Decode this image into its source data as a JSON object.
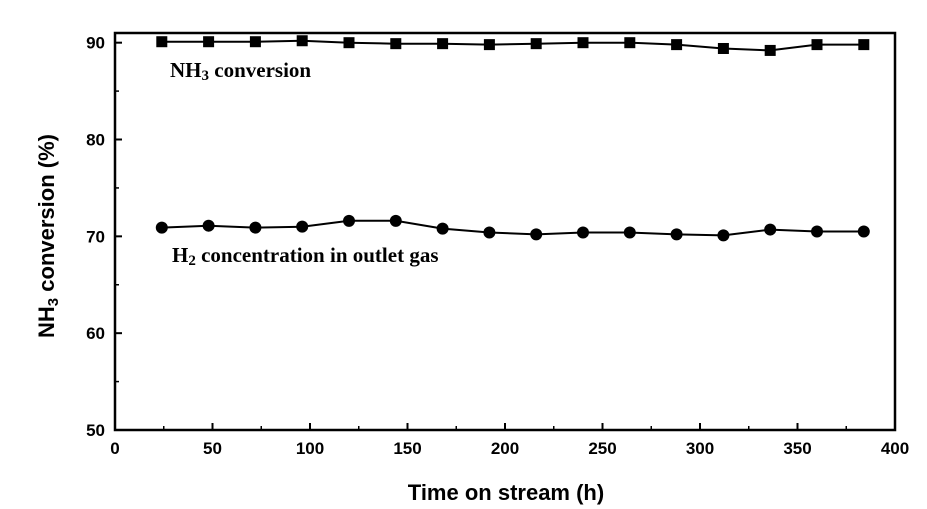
{
  "chart_data": {
    "type": "line",
    "title": "",
    "xlabel": "Time on stream (h)",
    "ylabel": {
      "main": "NH",
      "sub": "3",
      "rest": " conversion (%)"
    },
    "xlim": [
      0,
      400
    ],
    "ylim": [
      50,
      91
    ],
    "x_ticks": [
      0,
      50,
      100,
      150,
      200,
      250,
      300,
      350,
      400
    ],
    "y_ticks": [
      50,
      60,
      70,
      80,
      90
    ],
    "grid": false,
    "series": [
      {
        "marker": "square",
        "x": [
          24,
          48,
          72,
          96,
          120,
          144,
          168,
          192,
          216,
          240,
          264,
          288,
          312,
          336,
          360,
          384
        ],
        "y": [
          90.1,
          90.1,
          90.1,
          90.2,
          90.0,
          89.9,
          89.9,
          89.8,
          89.9,
          90.0,
          90.0,
          89.8,
          89.4,
          89.2,
          89.8,
          89.8
        ]
      },
      {
        "marker": "circle",
        "x": [
          24,
          48,
          72,
          96,
          120,
          144,
          168,
          192,
          216,
          240,
          264,
          288,
          312,
          336,
          360,
          384
        ],
        "y": [
          70.9,
          71.1,
          70.9,
          71.0,
          71.6,
          71.6,
          70.8,
          70.4,
          70.2,
          70.4,
          70.4,
          70.2,
          70.1,
          70.7,
          70.5,
          70.5
        ]
      }
    ],
    "annotations": [
      {
        "main": "NH",
        "sub": "3",
        "rest": " conversion"
      },
      {
        "main": "H",
        "sub": "2",
        "rest": " concentration in outlet gas"
      }
    ]
  }
}
